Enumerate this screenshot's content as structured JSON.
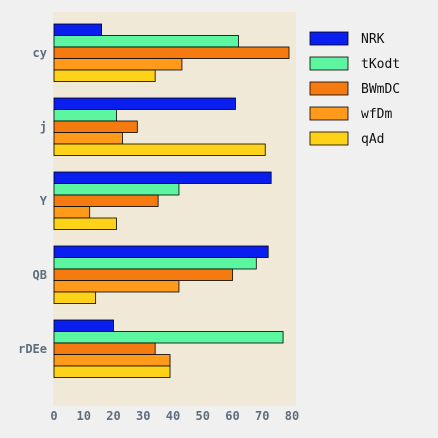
{
  "chart_data": {
    "type": "bar",
    "orientation": "horizontal",
    "categories": [
      "cy",
      "j",
      "Y",
      "QB",
      "rDEe"
    ],
    "series": [
      {
        "name": "NRK",
        "color": "#0a1ef0",
        "values": [
          16,
          61,
          73,
          72,
          20
        ]
      },
      {
        "name": "tKodt",
        "color": "#5cf5a0",
        "values": [
          62,
          21,
          42,
          68,
          77
        ]
      },
      {
        "name": "BWmDC",
        "color": "#f57a10",
        "values": [
          79,
          28,
          35,
          60,
          34
        ]
      },
      {
        "name": "wfDm",
        "color": "#ff9a1a",
        "values": [
          43,
          23,
          12,
          42,
          39
        ]
      },
      {
        "name": "qAd",
        "color": "#ffd21a",
        "values": [
          34,
          71,
          21,
          14,
          39
        ]
      }
    ],
    "xlim": [
      0,
      80
    ],
    "xticks": [
      0,
      10,
      20,
      30,
      40,
      50,
      60,
      70,
      80
    ],
    "title": "",
    "xlabel": "",
    "ylabel": "",
    "grid": false,
    "legend_position": "top-right",
    "plot_background": "#f0e9d8"
  }
}
